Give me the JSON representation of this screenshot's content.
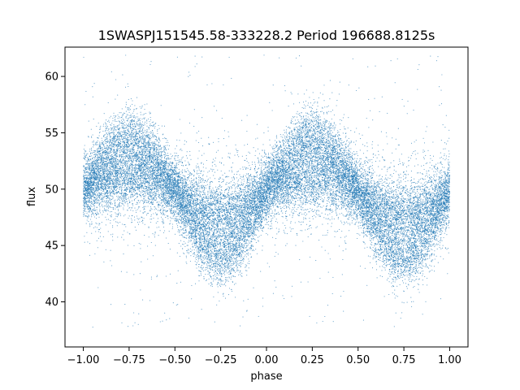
{
  "chart_data": {
    "type": "scatter",
    "title": "1SWASPJ151545.58-333228.2 Period 196688.8125s",
    "xlabel": "phase",
    "ylabel": "flux",
    "xlim": [
      -1.1,
      1.1
    ],
    "ylim": [
      36.0,
      62.6
    ],
    "xticks": [
      -1.0,
      -0.75,
      -0.5,
      -0.25,
      0.0,
      0.25,
      0.5,
      0.75,
      1.0
    ],
    "xtick_labels": [
      "−1.00",
      "−0.75",
      "−0.50",
      "−0.25",
      "0.00",
      "0.25",
      "0.50",
      "0.75",
      "1.00"
    ],
    "yticks": [
      40,
      45,
      50,
      55,
      60
    ],
    "ytick_labels": [
      "40",
      "45",
      "50",
      "55",
      "60"
    ],
    "grid": false,
    "series": [
      {
        "color": "#1f77b4",
        "phase_range": [
          -1.0,
          1.0
        ],
        "baseline_flux": 49.9,
        "upper_branch": {
          "peak_flux": 54.5,
          "peak_phases": [
            -0.75,
            0.25
          ]
        },
        "lower_branch": {
          "min_flux": 44.0,
          "min_phases": [
            -0.25,
            0.75
          ]
        },
        "scatter_sigma": 1.7,
        "outlier_flux_range": [
          37.5,
          61.9
        ]
      }
    ]
  }
}
